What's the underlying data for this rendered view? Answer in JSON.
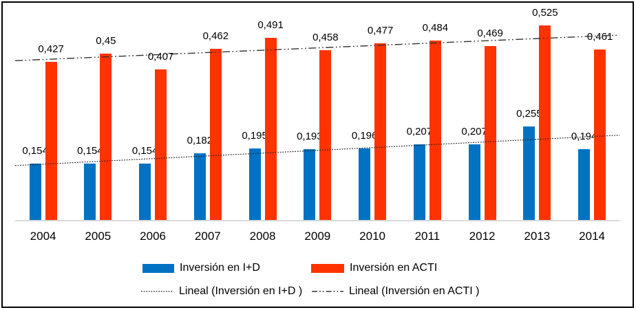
{
  "chart_data": {
    "type": "bar",
    "title": "",
    "xlabel": "",
    "ylabel": "",
    "categories": [
      "2004",
      "2005",
      "2006",
      "2007",
      "2008",
      "2009",
      "2010",
      "2011",
      "2012",
      "2013",
      "2014"
    ],
    "series": [
      {
        "name": "Inversión en I+D",
        "color": "#0072C4",
        "values": [
          0.154,
          0.154,
          0.154,
          0.182,
          0.195,
          0.193,
          0.196,
          0.207,
          0.207,
          0.255,
          0.194
        ],
        "labels": [
          "0,154",
          "0,154",
          "0,154",
          "0,182",
          "0,195",
          "0,193",
          "0,196",
          "0,207",
          "0,207",
          "0,255",
          "0,194"
        ]
      },
      {
        "name": "Inversión en ACTI",
        "color": "#FF3300",
        "values": [
          0.427,
          0.45,
          0.407,
          0.462,
          0.491,
          0.458,
          0.477,
          0.484,
          0.469,
          0.525,
          0.461
        ],
        "labels": [
          "0,427",
          "0,45",
          "0,407",
          "0,462",
          "0,491",
          "0,458",
          "0,477",
          "0,484",
          "0,469",
          "0,525",
          "0,461"
        ]
      }
    ],
    "trendlines": [
      {
        "name": "Lineal (Inversión en I+D )",
        "style": "dotted",
        "color": "#262626",
        "start_value": 0.1494,
        "end_value": 0.2308
      },
      {
        "name": "Lineal (Inversión en ACTI )",
        "style": "dash-dot-dot",
        "color": "#333333",
        "start_value": 0.4303,
        "end_value": 0.4989
      }
    ],
    "ylim": [
      0,
      0.575
    ],
    "grid": false,
    "legend_position": "bottom",
    "axis_color": "#D9D9D9",
    "data_label_color": "#000000",
    "decimal_separator": ","
  }
}
